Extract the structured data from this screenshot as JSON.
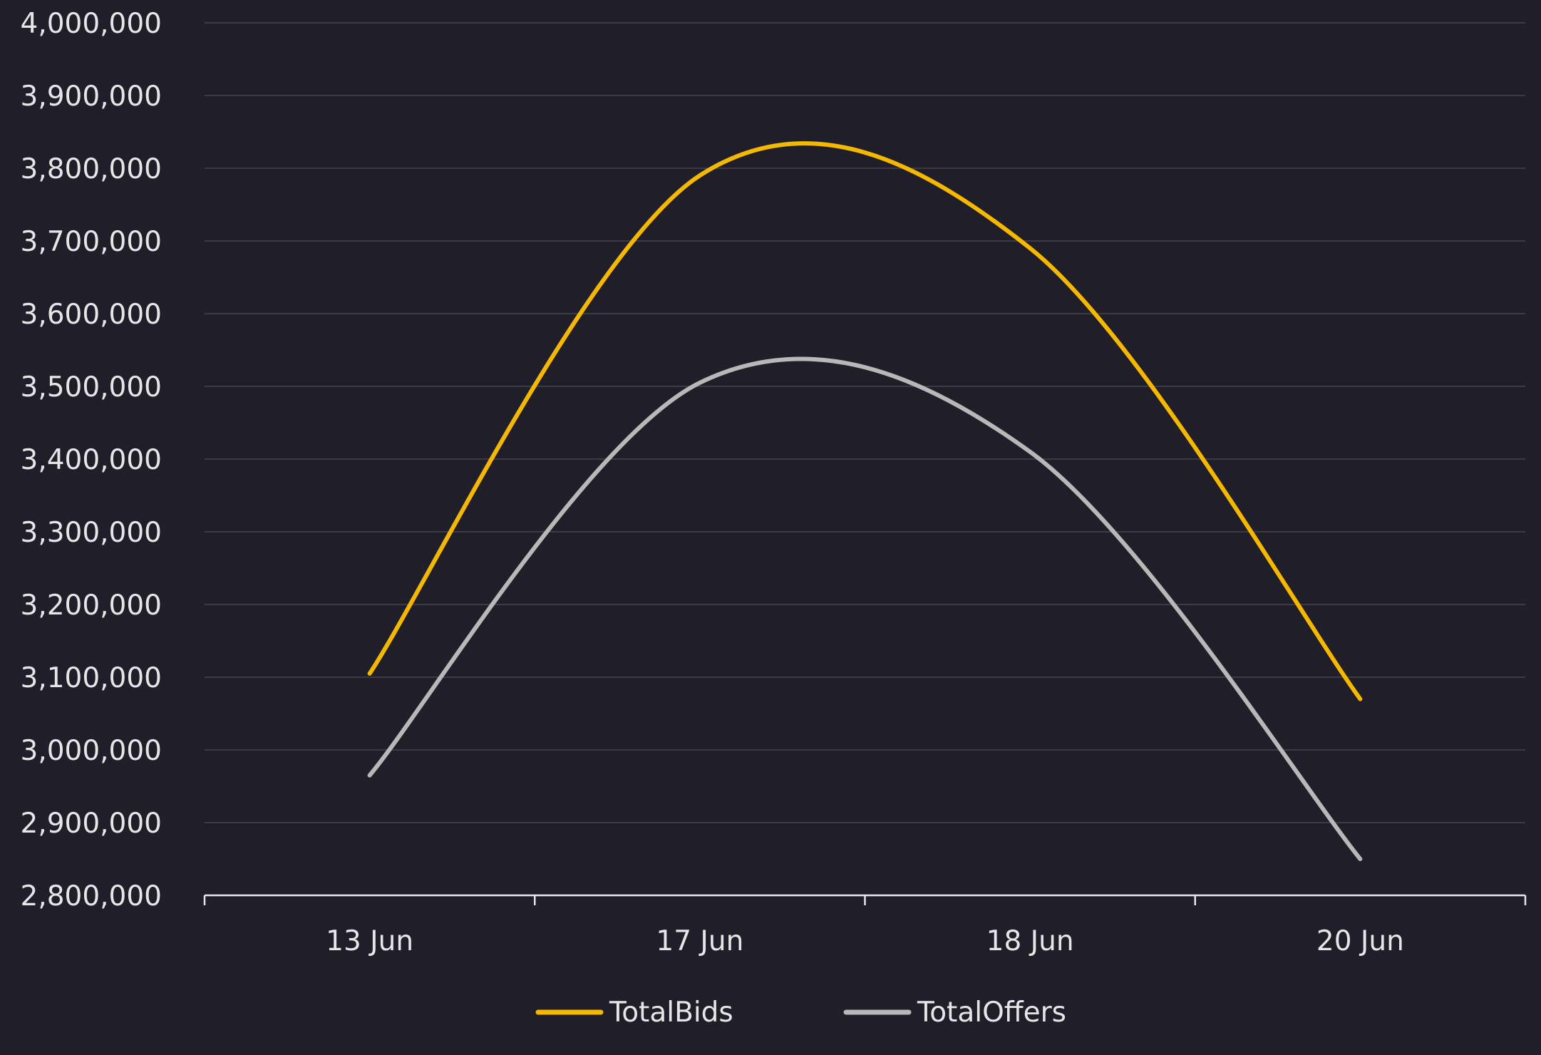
{
  "colors": {
    "background": "#1f1e29",
    "grid": "#3c3b45",
    "axis": "#e6e6e6",
    "text": "#e6e6e6"
  },
  "chart_data": {
    "type": "line",
    "title": "",
    "xlabel": "",
    "ylabel": "",
    "categories": [
      "13 Jun",
      "17 Jun",
      "18 Jun",
      "20 Jun"
    ],
    "ylim": [
      2800000,
      4000000
    ],
    "yticks": [
      2800000,
      2900000,
      3000000,
      3100000,
      3200000,
      3300000,
      3400000,
      3500000,
      3600000,
      3700000,
      3800000,
      3900000,
      4000000
    ],
    "ytick_labels": [
      "2,800,000",
      "2,900,000",
      "3,000,000",
      "3,100,000",
      "3,200,000",
      "3,300,000",
      "3,400,000",
      "3,500,000",
      "3,600,000",
      "3,700,000",
      "3,800,000",
      "3,900,000",
      "4,000,000"
    ],
    "grid": true,
    "legend_position": "bottom-center",
    "series": [
      {
        "name": "TotalBids",
        "color": "#f5b800",
        "values": [
          3105000,
          3790000,
          3690000,
          3070000
        ]
      },
      {
        "name": "TotalOffers",
        "color": "#b8b8b8",
        "values": [
          2965000,
          3505000,
          3410000,
          2850000
        ]
      }
    ]
  }
}
